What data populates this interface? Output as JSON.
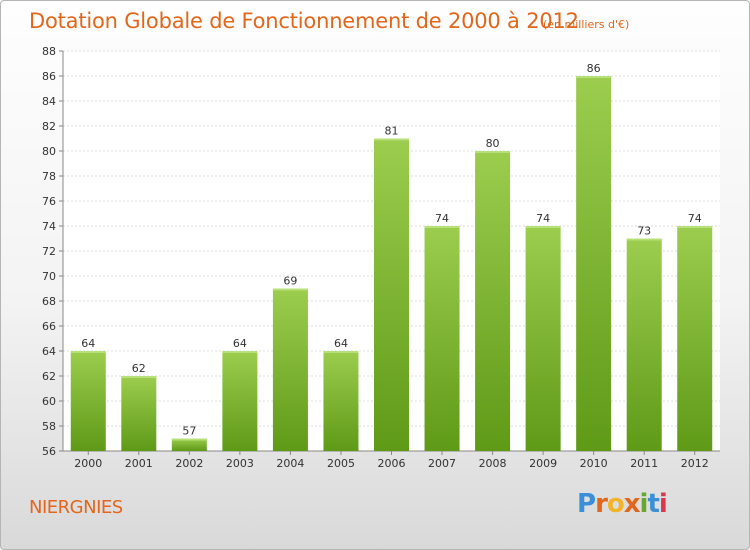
{
  "title": "Dotation Globale de Fonctionnement de 2000 à 2012",
  "subtitle": "(en milliers d'€)",
  "commune": "NIERGNIES",
  "logo": {
    "letters": [
      "P",
      "r",
      "o",
      "x",
      "i",
      "t",
      "i"
    ],
    "colors": [
      "#3a8fd8",
      "#e2661b",
      "#f2b42a",
      "#e2661b",
      "#65a82d",
      "#3a8fd8",
      "#d9374b"
    ]
  },
  "colors": {
    "bar_light": "#9ccd4e",
    "bar_dark": "#5f9a17",
    "title": "#e2661b"
  },
  "chart_data": {
    "type": "bar",
    "categories": [
      "2000",
      "2001",
      "2002",
      "2003",
      "2004",
      "2005",
      "2006",
      "2007",
      "2008",
      "2009",
      "2010",
      "2011",
      "2012"
    ],
    "values": [
      64,
      62,
      57,
      64,
      69,
      64,
      81,
      74,
      80,
      74,
      86,
      73,
      74
    ],
    "ylim": [
      56,
      88
    ],
    "yticks": [
      56,
      58,
      60,
      62,
      64,
      66,
      68,
      70,
      72,
      74,
      76,
      78,
      80,
      82,
      84,
      86,
      88
    ],
    "grid": true,
    "title": "Dotation Globale de Fonctionnement de 2000 à 2012",
    "xlabel": "",
    "ylabel": ""
  }
}
